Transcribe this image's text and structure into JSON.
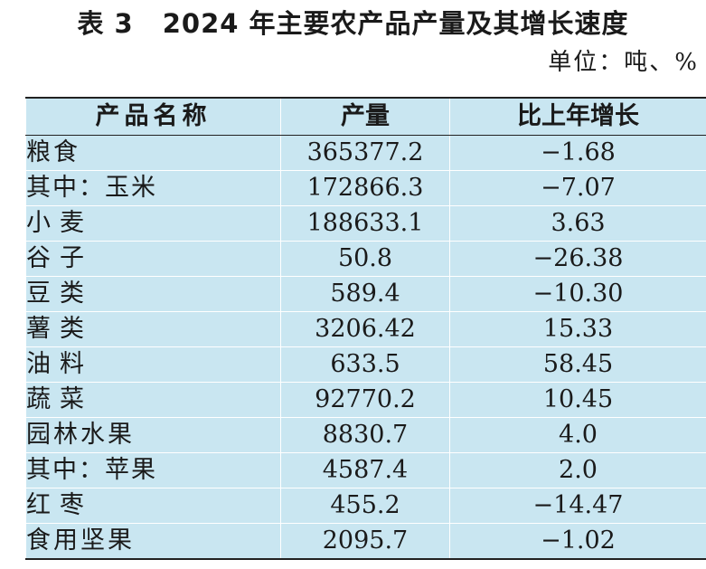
{
  "title": {
    "number": "表 3",
    "text": "2024 年主要农产品产量及其增长速度"
  },
  "unit": "单位：吨、%",
  "table": {
    "headers": {
      "name": "产品名称",
      "output": "产量",
      "growth": "比上年增长"
    },
    "rows": [
      {
        "name": "粮食",
        "output": "365377.2",
        "growth": "−1.68"
      },
      {
        "name": "其中：玉米",
        "output": "172866.3",
        "growth": "−7.07"
      },
      {
        "name": "小麦",
        "output": "188633.1",
        "growth": "3.63"
      },
      {
        "name": "谷子",
        "output": "50.8",
        "growth": "−26.38"
      },
      {
        "name": "豆类",
        "output": "589.4",
        "growth": "−10.30"
      },
      {
        "name": "薯类",
        "output": "3206.42",
        "growth": "15.33"
      },
      {
        "name": "油料",
        "output": "633.5",
        "growth": "58.45"
      },
      {
        "name": "蔬菜",
        "output": "92770.2",
        "growth": "10.45"
      },
      {
        "name": "园林水果",
        "output": "8830.7",
        "growth": "4.0"
      },
      {
        "name": "其中：苹果",
        "output": "4587.4",
        "growth": "2.0"
      },
      {
        "name": "红枣",
        "output": "455.2",
        "growth": "−14.47"
      },
      {
        "name": "食用坚果",
        "output": "2095.7",
        "growth": "−1.02"
      }
    ]
  }
}
